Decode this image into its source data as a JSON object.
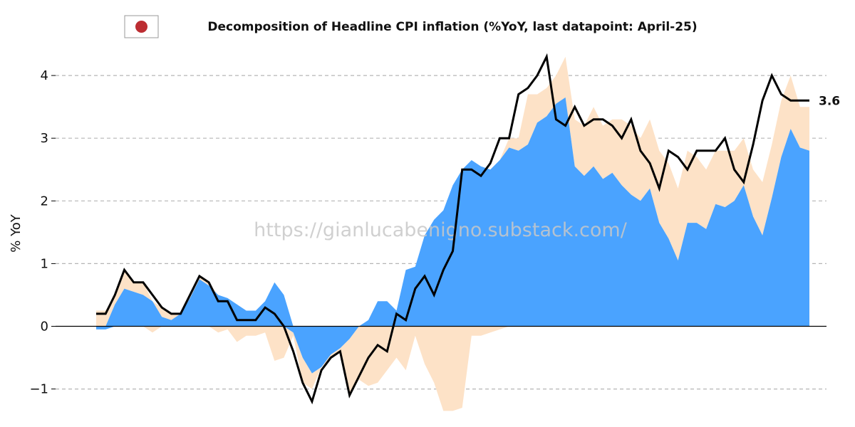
{
  "colors": {
    "headline": "#000000",
    "component_a": "#4aa3ff",
    "component_b": "#fde2c7",
    "flag_circle": "#bc2d32",
    "grid": "#b5b5b5"
  },
  "flag_icon": "japan-flag-icon",
  "watermark": "https://gianlucabenigno.substack.com/",
  "chart_data": {
    "type": "area",
    "title": "Decomposition of Headline CPI inflation (%YoY, last datapoint: April-25)",
    "xlabel": "",
    "ylabel": "% YoY",
    "ylim": [
      -1.35,
      4.45
    ],
    "yticks": [
      -1,
      0,
      1,
      2,
      3,
      4
    ],
    "ytick_labels": [
      "−1",
      "0",
      "1",
      "2",
      "3",
      "4"
    ],
    "grid": true,
    "last_value_label": "3.6",
    "x": [
      0,
      1,
      2,
      3,
      4,
      5,
      6,
      7,
      8,
      9,
      10,
      11,
      12,
      13,
      14,
      15,
      16,
      17,
      18,
      19,
      20,
      21,
      22,
      23,
      24,
      25,
      26,
      27,
      28,
      29,
      30,
      31,
      32,
      33,
      34,
      35,
      36,
      37,
      38,
      39,
      40,
      41,
      42,
      43,
      44,
      45,
      46,
      47,
      48,
      49,
      50,
      51,
      52,
      53,
      54,
      55,
      56,
      57,
      58,
      59,
      60,
      61,
      62,
      63,
      64,
      65,
      66,
      67,
      68,
      69,
      70,
      71,
      72,
      73,
      74,
      75,
      76
    ],
    "series": [
      {
        "values": [
          -0.05,
          -0.05,
          0.35,
          0.6,
          0.55,
          0.5,
          0.4,
          0.15,
          0.1,
          0.2,
          0.45,
          0.75,
          0.65,
          0.5,
          0.45,
          0.35,
          0.25,
          0.25,
          0.4,
          0.7,
          0.5,
          -0.1,
          -0.5,
          -0.75,
          -0.65,
          -0.45,
          -0.35,
          -0.2,
          0.0,
          0.1,
          0.4,
          0.4,
          0.25,
          0.9,
          0.95,
          1.45,
          1.7,
          1.85,
          2.25,
          2.5,
          2.65,
          2.55,
          2.5,
          2.65,
          2.85,
          2.8,
          2.9,
          3.25,
          3.35,
          3.55,
          3.65,
          2.55,
          2.4,
          2.55,
          2.35,
          2.45,
          2.25,
          2.1,
          2.0,
          2.2,
          1.65,
          1.4,
          1.05,
          1.65,
          1.65,
          1.55,
          1.95,
          1.9,
          2.0,
          2.25,
          1.75,
          1.45,
          2.05,
          2.7,
          3.15,
          2.85,
          2.8
        ]
      },
      {
        "values": [
          0.25,
          0.25,
          0.15,
          0.3,
          0.15,
          0.2,
          -0.1,
          0.15,
          0.1,
          0.0,
          0.05,
          0.05,
          0.05,
          -0.1,
          -0.05,
          -0.25,
          -0.15,
          -0.15,
          -0.1,
          -0.55,
          -0.5,
          -0.05,
          -0.4,
          -0.25,
          0.0,
          -0.05,
          -0.05,
          -0.9,
          -0.85,
          -0.95,
          -0.9,
          -0.7,
          -0.5,
          -0.7,
          -0.15,
          -0.6,
          -0.9,
          -1.35,
          -1.35,
          -1.3,
          -0.15,
          -0.15,
          -0.1,
          -0.05,
          0.15,
          0.2,
          0.8,
          0.45,
          0.45,
          0.45,
          0.65,
          0.75,
          0.8,
          0.95,
          0.85,
          0.85,
          1.05,
          1.1,
          1.0,
          1.1,
          1.15,
          1.2,
          1.15,
          1.15,
          1.05,
          0.95,
          0.85,
          0.9,
          0.8,
          0.75,
          0.75,
          0.85,
          0.85,
          0.9,
          0.85,
          0.65,
          0.7
        ]
      },
      {
        "values": [
          0.2,
          0.2,
          0.5,
          0.9,
          0.7,
          0.7,
          0.5,
          0.3,
          0.2,
          0.2,
          0.5,
          0.8,
          0.7,
          0.4,
          0.4,
          0.1,
          0.1,
          0.1,
          0.3,
          0.2,
          0.0,
          -0.4,
          -0.9,
          -1.2,
          -0.7,
          -0.5,
          -0.4,
          -1.1,
          -0.8,
          -0.5,
          -0.3,
          -0.4,
          0.2,
          0.1,
          0.6,
          0.8,
          0.5,
          0.9,
          1.2,
          2.5,
          2.5,
          2.4,
          2.6,
          3.0,
          3.0,
          3.7,
          3.8,
          4.0,
          4.3,
          3.3,
          3.2,
          3.5,
          3.2,
          3.3,
          3.3,
          3.2,
          3.0,
          3.3,
          2.8,
          2.6,
          2.2,
          2.8,
          2.7,
          2.5,
          2.8,
          2.8,
          2.8,
          3.0,
          2.5,
          2.3,
          2.9,
          3.6,
          4.0,
          3.7,
          3.6,
          3.6,
          3.6
        ]
      }
    ]
  }
}
